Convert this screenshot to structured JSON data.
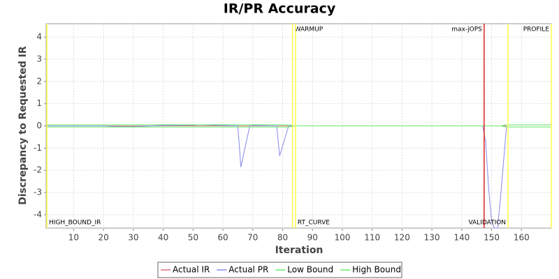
{
  "chart_data": {
    "type": "line",
    "title": "IR/PR Accuracy",
    "x_label": "Iteration",
    "y_label": "Discrepancy to Requested IR",
    "x": [
      1,
      10,
      20,
      25,
      30,
      40,
      50,
      52,
      60,
      65,
      66,
      69,
      70,
      78,
      79,
      82,
      84,
      100,
      120,
      140,
      147,
      148,
      149,
      150,
      151,
      152,
      153,
      155,
      156,
      160,
      170
    ],
    "series": [
      {
        "name": "Actual IR",
        "color": "#e07080",
        "values": [
          0,
          0,
          0,
          0,
          0,
          0,
          0,
          0,
          0,
          0,
          0,
          0,
          0,
          0,
          0,
          0,
          0,
          0,
          0,
          0,
          0,
          0,
          0,
          0,
          0,
          0,
          0,
          0,
          null,
          null,
          null
        ]
      },
      {
        "name": "Actual PR",
        "color": "#8888ee",
        "values": [
          0,
          0,
          0,
          -0.03,
          -0.03,
          0.02,
          0.03,
          0.05,
          0.02,
          0,
          -1.85,
          0,
          0.02,
          0,
          -1.35,
          0,
          0,
          0,
          0,
          0,
          0,
          -0.7,
          -2.8,
          -4.3,
          -4.6,
          -4.6,
          -3.2,
          0,
          null,
          null,
          null
        ]
      },
      {
        "name": "Low Bound",
        "color": "#66ee66",
        "values": [
          -0.05,
          -0.05,
          -0.05,
          -0.05,
          -0.05,
          -0.05,
          -0.05,
          -0.05,
          -0.05,
          -0.05,
          -0.05,
          -0.05,
          -0.05,
          -0.05,
          -0.05,
          -0.05,
          0,
          0,
          0,
          0,
          0,
          0,
          0,
          0,
          0,
          0,
          0,
          -0.05,
          -0.05,
          -0.05,
          -0.05
        ]
      },
      {
        "name": "High Bound",
        "color": "#66ee66",
        "values": [
          0.05,
          0.05,
          0.05,
          0.05,
          0.05,
          0.05,
          0.05,
          0.05,
          0.05,
          0.05,
          0.05,
          0.05,
          0.05,
          0.05,
          0.05,
          0.05,
          0,
          0,
          0,
          0,
          0,
          0,
          0,
          0,
          0,
          0,
          0,
          0.05,
          0.05,
          0.05,
          0.05
        ]
      }
    ],
    "markers": [
      {
        "x": 1,
        "label": "HIGH_BOUND_IR",
        "color": "#ffff44",
        "label_anchor": "bottom-right"
      },
      {
        "x": 83.3,
        "label": "WARMUP",
        "color": "#ffff44",
        "label_anchor": "top-right"
      },
      {
        "x": 84.3,
        "label": "RT_CURVE",
        "color": "#ffff44",
        "label_anchor": "bottom-right"
      },
      {
        "x": 147.5,
        "label": "max-jOPS",
        "color": "#dd2222",
        "label_anchor": "top-left"
      },
      {
        "x": 155.5,
        "label": "VALIDATION",
        "color": "#ffff44",
        "label_anchor": "bottom-left"
      },
      {
        "x": 170,
        "label": "PROFILE",
        "color": "#ffff44",
        "label_anchor": "top-left"
      }
    ],
    "xlim": [
      1,
      170
    ],
    "ylim": [
      -4.6,
      4.6
    ],
    "xticks": [
      10,
      20,
      30,
      40,
      50,
      60,
      70,
      80,
      90,
      100,
      110,
      120,
      130,
      140,
      150,
      160
    ],
    "yticks": [
      -4,
      -3,
      -2,
      -1,
      0,
      1,
      2,
      3,
      4
    ],
    "grid": true
  }
}
